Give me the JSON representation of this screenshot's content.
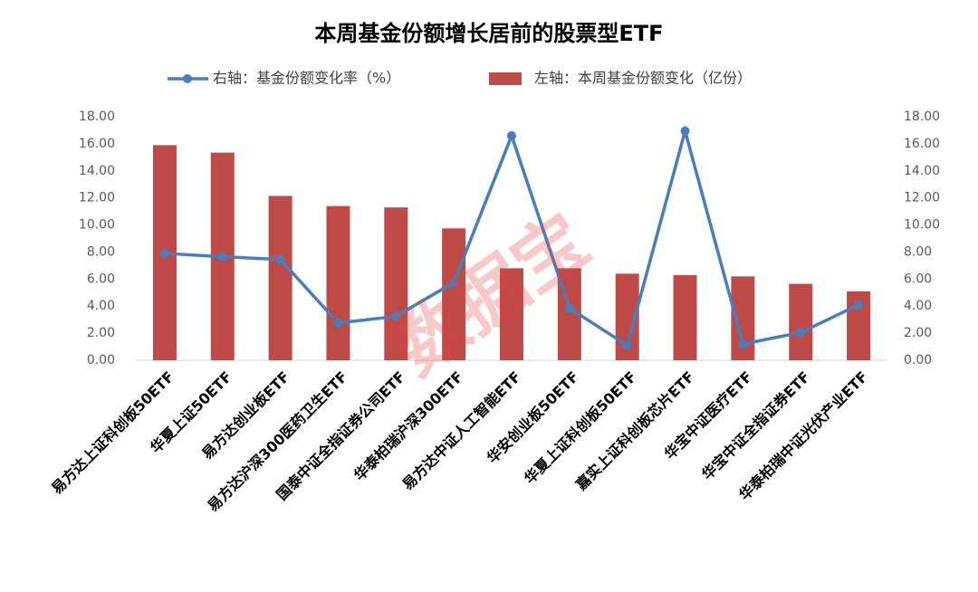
{
  "chart_data": {
    "type": "bar-line",
    "title": "本周基金份额增长居前的股票型ETF",
    "watermark": "数据宝",
    "categories": [
      "易方达上证科创板50ETF",
      "华夏上证50ETF",
      "易方达创业板ETF",
      "易方达沪深300医药卫生ETF",
      "国泰中证全指证券公司ETF",
      "华泰柏瑞沪深300ETF",
      "易方达中证人工智能ETF",
      "华安创业板50ETF",
      "华夏上证科创板50ETF",
      "嘉实上证科创板芯片ETF",
      "华宝中证医疗ETF",
      "华宝中证全指证券ETF",
      "华泰柏瑞中证光伏产业ETF"
    ],
    "series": [
      {
        "name": "右轴：基金份额变化率（%）",
        "type": "line",
        "axis": "y2",
        "color": "#4a7ebb",
        "values": [
          7.9,
          7.65,
          7.45,
          2.75,
          3.25,
          5.75,
          16.6,
          3.85,
          1.1,
          16.95,
          1.2,
          2.05,
          4.1
        ]
      },
      {
        "name": "左轴：本周基金份额变化（亿份）",
        "type": "bar",
        "axis": "y",
        "color": "#be4b48",
        "values": [
          15.9,
          15.35,
          12.15,
          11.4,
          11.3,
          9.75,
          6.8,
          6.8,
          6.4,
          6.3,
          6.2,
          5.65,
          5.1
        ]
      }
    ],
    "ylim": [
      0,
      18
    ],
    "yticks": [
      {
        "value": 0,
        "label": "0.00"
      },
      {
        "value": 2,
        "label": "2.00"
      },
      {
        "value": 4,
        "label": "4.00"
      },
      {
        "value": 6,
        "label": "6.00"
      },
      {
        "value": 8,
        "label": "8.00"
      },
      {
        "value": 10,
        "label": "10.00"
      },
      {
        "value": 12,
        "label": "12.00"
      },
      {
        "value": 14,
        "label": "14.00"
      },
      {
        "value": 16,
        "label": "16.00"
      },
      {
        "value": 18,
        "label": "18.00"
      }
    ],
    "y2lim": [
      0,
      18
    ],
    "y2ticks": [
      {
        "value": 0,
        "label": "0.00"
      },
      {
        "value": 2,
        "label": "2.00"
      },
      {
        "value": 4,
        "label": "4.00"
      },
      {
        "value": 6,
        "label": "6.00"
      },
      {
        "value": 8,
        "label": "8.00"
      },
      {
        "value": 10,
        "label": "10.00"
      },
      {
        "value": 12,
        "label": "12.00"
      },
      {
        "value": 14,
        "label": "14.00"
      },
      {
        "value": 16,
        "label": "16.00"
      },
      {
        "value": 18,
        "label": "18.00"
      }
    ]
  }
}
